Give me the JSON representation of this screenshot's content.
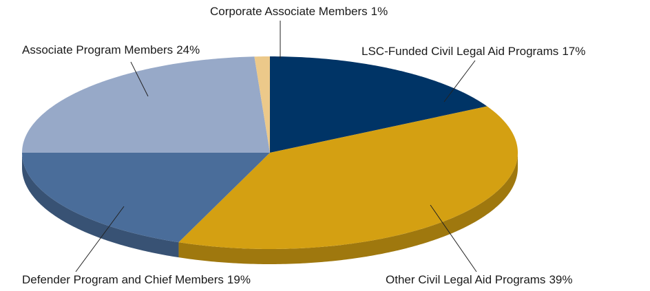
{
  "chart_data": {
    "type": "pie",
    "categories": [
      "LSC-Funded Civil Legal Aid Programs",
      "Other Civil Legal Aid Programs",
      "Defender Program and Chief Members",
      "Associate Program Members",
      "Corporate Associate Members"
    ],
    "values": [
      17,
      39,
      19,
      24,
      1
    ],
    "value_labels": [
      "17%",
      "39%",
      "19%",
      "24%",
      "1%"
    ],
    "colors": [
      "#003466",
      "#d4a012",
      "#4a6d9a",
      "#97a9c8",
      "#ecc98a"
    ]
  }
}
